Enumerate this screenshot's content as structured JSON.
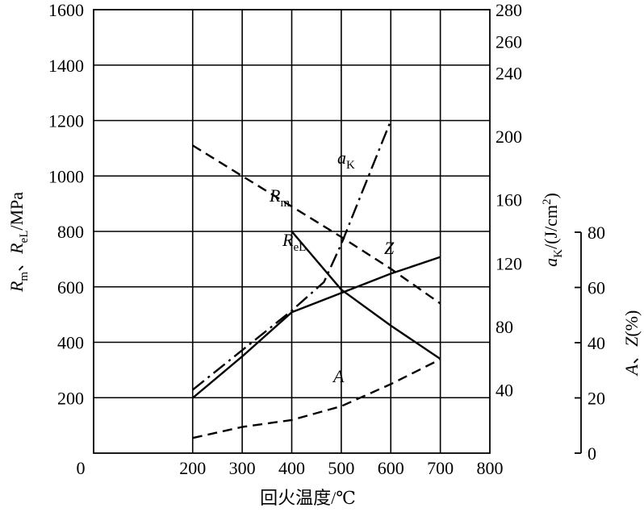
{
  "chart_data": {
    "type": "line",
    "x": {
      "label": "回火温度/℃",
      "ticks": [
        0,
        200,
        300,
        400,
        500,
        600,
        700,
        800
      ],
      "range": [
        0,
        800
      ]
    },
    "y_left": {
      "label": "Rm、ReL/MPa",
      "ticks": [
        200,
        400,
        600,
        800,
        1000,
        1200,
        1400,
        1600
      ],
      "range": [
        0,
        1600
      ]
    },
    "y_right1": {
      "label": "aK/(J/cm2)",
      "ticks": [
        40,
        80,
        120,
        160,
        200,
        240,
        260,
        280
      ],
      "range": [
        0,
        280
      ]
    },
    "y_right2": {
      "label": "A、Z(%)",
      "ticks": [
        0,
        20,
        40,
        60,
        80
      ],
      "range": [
        0,
        80
      ]
    },
    "grid": true,
    "series": [
      {
        "name": "Rm",
        "axis": "left",
        "style": "dashed",
        "points": [
          [
            200,
            1110
          ],
          [
            300,
            1000
          ],
          [
            400,
            890
          ],
          [
            500,
            780
          ],
          [
            600,
            665
          ],
          [
            700,
            540
          ]
        ]
      },
      {
        "name": "ReL",
        "axis": "left",
        "style": "solid",
        "points": [
          [
            400,
            800
          ],
          [
            500,
            590
          ],
          [
            600,
            460
          ],
          [
            700,
            340
          ]
        ]
      },
      {
        "name": "aK",
        "axis": "right1",
        "style": "dashdot",
        "points": [
          [
            200,
            40
          ],
          [
            300,
            65
          ],
          [
            400,
            90
          ],
          [
            465,
            108
          ],
          [
            500,
            132
          ],
          [
            600,
            210
          ]
        ]
      },
      {
        "name": "Z",
        "axis": "right2",
        "style": "solid",
        "points": [
          [
            200,
            20
          ],
          [
            300,
            35
          ],
          [
            400,
            51
          ],
          [
            500,
            58
          ],
          [
            600,
            65
          ],
          [
            700,
            71
          ]
        ]
      },
      {
        "name": "A",
        "axis": "right2",
        "style": "dashed",
        "points": [
          [
            200,
            5.5
          ],
          [
            300,
            9.5
          ],
          [
            400,
            12
          ],
          [
            500,
            17
          ],
          [
            600,
            25
          ],
          [
            700,
            34
          ]
        ]
      }
    ],
    "annotations": {
      "aK": "aK",
      "Rm": "Rm",
      "ReL": "ReL",
      "Z": "Z",
      "A": "A"
    }
  }
}
